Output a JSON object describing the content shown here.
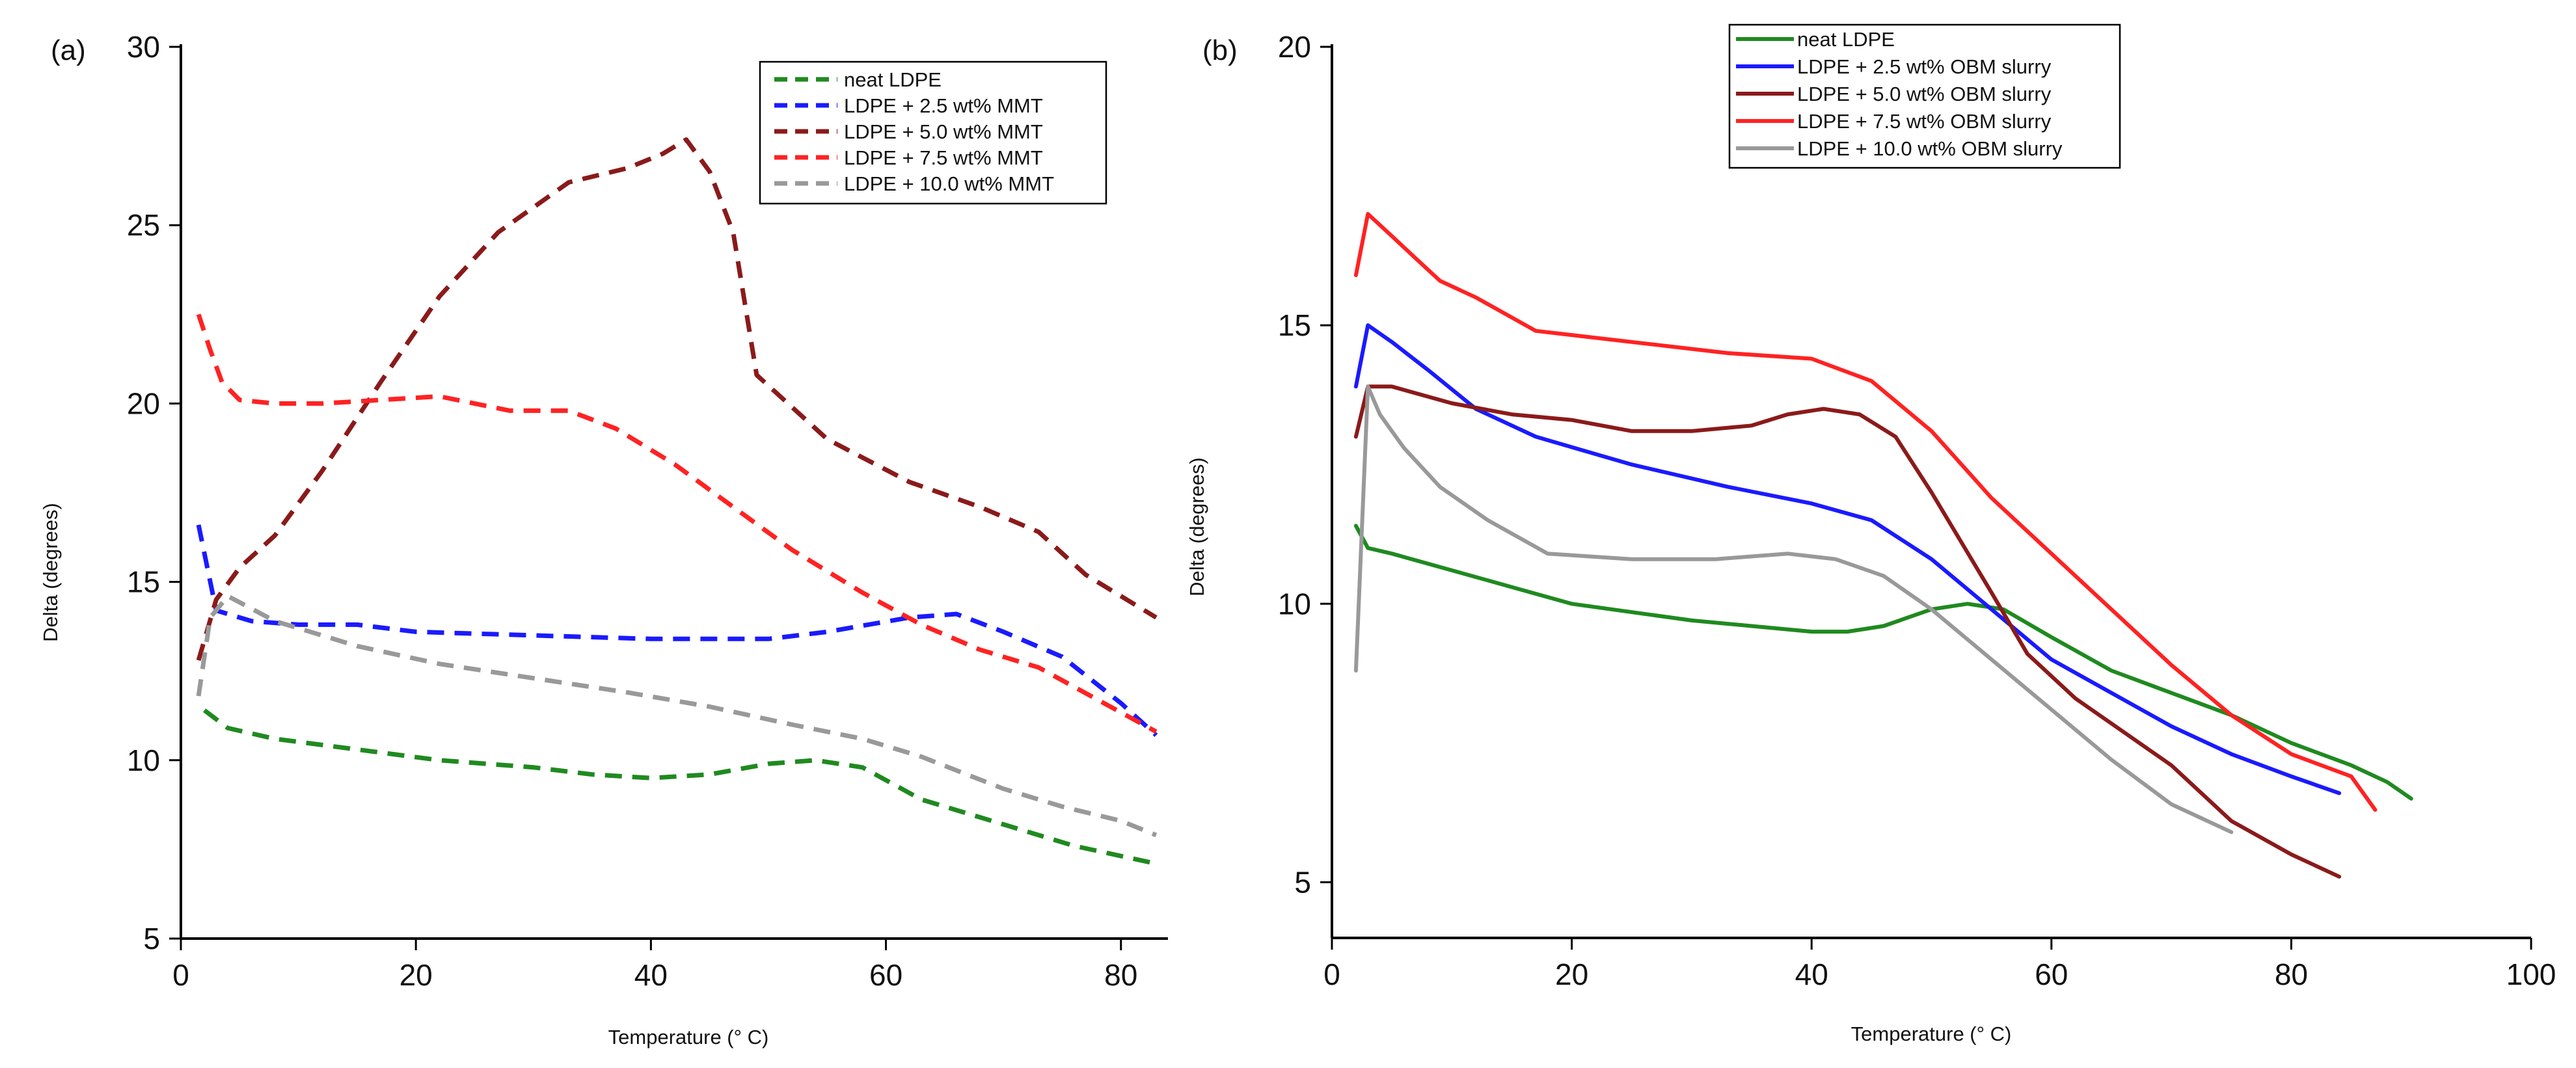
{
  "chart_data": [
    {
      "panel": "(a)",
      "type": "line",
      "title": "",
      "xlabel": "Temperature (° C)",
      "ylabel": "Delta (degrees)",
      "xlim": [
        0,
        84
      ],
      "ylim": [
        5,
        30
      ],
      "xticks": [
        0,
        20,
        40,
        60,
        80
      ],
      "yticks": [
        5,
        10,
        15,
        20,
        25,
        30
      ],
      "line_style": "dashed",
      "legend_position": "top-right",
      "series": [
        {
          "name": "neat LDPE",
          "color": "#1f8a1f",
          "x": [
            2,
            4,
            8,
            15,
            22,
            30,
            35,
            40,
            45,
            50,
            54,
            58,
            63,
            70,
            76,
            83
          ],
          "y": [
            11.4,
            10.9,
            10.6,
            10.3,
            10.0,
            9.8,
            9.6,
            9.5,
            9.6,
            9.9,
            10.0,
            9.8,
            8.9,
            8.2,
            7.6,
            7.1
          ]
        },
        {
          "name": "LDPE + 2.5 wt% MMT",
          "color": "#1a1aff",
          "x": [
            1.5,
            3,
            6,
            10,
            15,
            20,
            30,
            40,
            50,
            55,
            62,
            66,
            70,
            75,
            80,
            83
          ],
          "y": [
            16.6,
            14.2,
            13.9,
            13.8,
            13.8,
            13.6,
            13.5,
            13.4,
            13.4,
            13.6,
            14.0,
            14.1,
            13.6,
            12.9,
            11.6,
            10.7
          ]
        },
        {
          "name": "LDPE + 5.0 wt% MMT",
          "color": "#8b1a1a",
          "x": [
            1.5,
            3,
            5,
            8,
            12,
            17,
            22,
            27,
            33,
            38,
            41,
            43,
            45,
            47,
            49,
            55,
            62,
            68,
            73,
            77,
            83
          ],
          "y": [
            12.8,
            14.5,
            15.4,
            16.3,
            18.1,
            20.6,
            23.0,
            24.8,
            26.2,
            26.6,
            27.0,
            27.4,
            26.5,
            24.8,
            20.8,
            19.0,
            17.8,
            17.1,
            16.4,
            15.2,
            14.0
          ]
        },
        {
          "name": "LDPE + 7.5 wt% MMT",
          "color": "#ff2222",
          "x": [
            1.5,
            2.5,
            3.5,
            5,
            8,
            12,
            17,
            22,
            25,
            28,
            33,
            37,
            42,
            47,
            52,
            58,
            63,
            68,
            73,
            78,
            83
          ],
          "y": [
            22.5,
            21.5,
            20.6,
            20.1,
            20.0,
            20.0,
            20.1,
            20.2,
            20.0,
            19.8,
            19.8,
            19.3,
            18.3,
            17.1,
            15.9,
            14.7,
            13.8,
            13.1,
            12.6,
            11.7,
            10.8
          ]
        },
        {
          "name": "LDPE + 10.0 wt% MMT",
          "color": "#999999",
          "x": [
            1.5,
            2.5,
            4,
            8,
            15,
            22,
            30,
            38,
            45,
            52,
            58,
            63,
            70,
            75,
            80,
            83
          ],
          "y": [
            11.8,
            14.0,
            14.6,
            13.9,
            13.2,
            12.7,
            12.3,
            11.9,
            11.5,
            11.0,
            10.6,
            10.1,
            9.2,
            8.7,
            8.3,
            7.9
          ]
        }
      ],
      "legend": [
        "neat LDPE",
        "LDPE + 2.5 wt% MMT",
        "LDPE + 5.0 wt% MMT",
        "LDPE + 7.5 wt% MMT",
        "LDPE + 10.0 wt% MMT"
      ]
    },
    {
      "panel": "(b)",
      "type": "line",
      "title": "",
      "xlabel": "Temperature (° C)",
      "ylabel": "Delta (degrees)",
      "xlim": [
        0,
        100
      ],
      "ylim": [
        4,
        20
      ],
      "xticks": [
        0,
        20,
        40,
        60,
        80,
        100
      ],
      "yticks": [
        5,
        10,
        15,
        20
      ],
      "line_style": "solid",
      "legend_position": "top-center",
      "series": [
        {
          "name": "neat LDPE",
          "color": "#1f8a1f",
          "x": [
            2,
            3,
            5,
            10,
            15,
            20,
            30,
            35,
            40,
            43,
            46,
            50,
            53,
            56,
            60,
            65,
            70,
            75,
            80,
            85,
            88,
            90
          ],
          "y": [
            11.4,
            11.0,
            10.9,
            10.6,
            10.3,
            10.0,
            9.7,
            9.6,
            9.5,
            9.5,
            9.6,
            9.9,
            10.0,
            9.9,
            9.4,
            8.8,
            8.4,
            8.0,
            7.5,
            7.1,
            6.8,
            6.5
          ]
        },
        {
          "name": "LDPE + 2.5 wt% OBM slurry",
          "color": "#1a1aff",
          "x": [
            2,
            3,
            5,
            8,
            12,
            17,
            25,
            33,
            40,
            45,
            50,
            55,
            60,
            65,
            70,
            75,
            80,
            84
          ],
          "y": [
            13.9,
            15.0,
            14.7,
            14.2,
            13.5,
            13.0,
            12.5,
            12.1,
            11.8,
            11.5,
            10.8,
            9.9,
            9.0,
            8.4,
            7.8,
            7.3,
            6.9,
            6.6
          ]
        },
        {
          "name": "LDPE + 5.0 wt% OBM slurry",
          "color": "#8b1a1a",
          "x": [
            2,
            3,
            5,
            10,
            15,
            20,
            25,
            30,
            35,
            38,
            41,
            44,
            47,
            50,
            55,
            58,
            62,
            66,
            70,
            75,
            80,
            84
          ],
          "y": [
            13.0,
            13.9,
            13.9,
            13.6,
            13.4,
            13.3,
            13.1,
            13.1,
            13.2,
            13.4,
            13.5,
            13.4,
            13.0,
            12.0,
            10.2,
            9.1,
            8.3,
            7.7,
            7.1,
            6.1,
            5.5,
            5.1
          ]
        },
        {
          "name": "LDPE + 7.5 wt% OBM slurry",
          "color": "#ff2222",
          "x": [
            2,
            3,
            5,
            7,
            9,
            12,
            17,
            25,
            33,
            40,
            45,
            50,
            55,
            60,
            65,
            70,
            75,
            80,
            85,
            87
          ],
          "y": [
            15.9,
            17.0,
            16.6,
            16.2,
            15.8,
            15.5,
            14.9,
            14.7,
            14.5,
            14.4,
            14.0,
            13.1,
            11.9,
            10.9,
            9.9,
            8.9,
            8.0,
            7.3,
            6.9,
            6.3
          ]
        },
        {
          "name": "LDPE + 10.0 wt% OBM slurry",
          "color": "#999999",
          "x": [
            2,
            3,
            4,
            6,
            9,
            13,
            18,
            25,
            32,
            38,
            42,
            46,
            50,
            55,
            60,
            65,
            70,
            75
          ],
          "y": [
            8.8,
            13.9,
            13.4,
            12.8,
            12.1,
            11.5,
            10.9,
            10.8,
            10.8,
            10.9,
            10.8,
            10.5,
            9.9,
            9.0,
            8.1,
            7.2,
            6.4,
            5.9
          ]
        }
      ],
      "legend": [
        "neat LDPE",
        "LDPE + 2.5 wt% OBM slurry",
        "LDPE + 5.0 wt% OBM slurry",
        "LDPE + 7.5 wt% OBM slurry",
        "LDPE + 10.0 wt% OBM slurry"
      ]
    }
  ]
}
